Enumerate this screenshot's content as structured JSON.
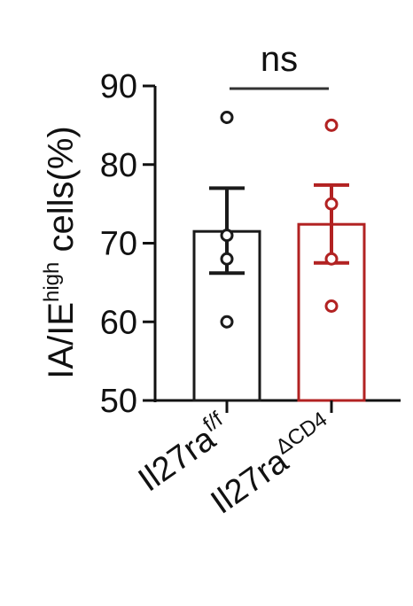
{
  "chart_data": {
    "type": "bar",
    "ylabel": {
      "prefix": "IA/IE",
      "superscript": "high",
      "suffix": " cells(%)"
    },
    "ylim": [
      50,
      90
    ],
    "yticks": [
      50,
      60,
      70,
      80,
      90
    ],
    "categories": [
      {
        "base": "Il27ra",
        "superscript": "f/f",
        "color": "#1a1a1a"
      },
      {
        "base": "Il27ra",
        "superscript": "ΔCD4",
        "color": "#b22222"
      }
    ],
    "values": [
      71.5,
      72.4
    ],
    "error_upper": [
      77.0,
      77.4
    ],
    "error_lower": [
      66.2,
      67.5
    ],
    "points": [
      [
        86,
        71,
        68,
        60
      ],
      [
        85,
        75,
        68,
        62
      ]
    ],
    "significance": {
      "label": "ns",
      "between": [
        0,
        1
      ]
    }
  }
}
